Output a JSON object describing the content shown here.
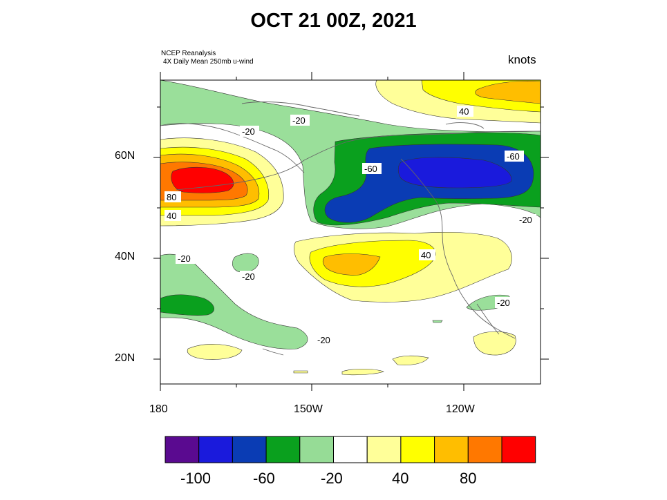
{
  "title": "OCT 21 00Z, 2021",
  "source_line1": "NCEP Reanalysis",
  "source_line2": "4X Daily Mean 250mb u-wind",
  "units": "knots",
  "lat_labels": [
    "60N",
    "40N",
    "20N"
  ],
  "lon_labels": [
    "180",
    "150W",
    "120W"
  ],
  "colorbar": {
    "colors": [
      "#5a0a90",
      "#1a1adc",
      "#0a3cb4",
      "#0aa01e",
      "#96dc96",
      "#ffffff",
      "#ffff99",
      "#ffff00",
      "#ffbe00",
      "#ff7800",
      "#ff0000"
    ],
    "labels": [
      "-100",
      "-60",
      "-20",
      "40",
      "80"
    ]
  },
  "contour_labels": [
    "-20",
    "-20",
    "-60",
    "-60",
    "-20",
    "80",
    "40",
    "40",
    "-20",
    "-20",
    "-20",
    "-20",
    "40"
  ],
  "colors": {
    "light_green": "#9adf9a",
    "green": "#0aa01e",
    "blue": "#0a3cb4",
    "bright_blue": "#1a1adc",
    "light_yellow": "#ffff99",
    "yellow": "#ffff00",
    "orange_yellow": "#ffbe00",
    "orange": "#ff7800",
    "red": "#ff0000"
  }
}
